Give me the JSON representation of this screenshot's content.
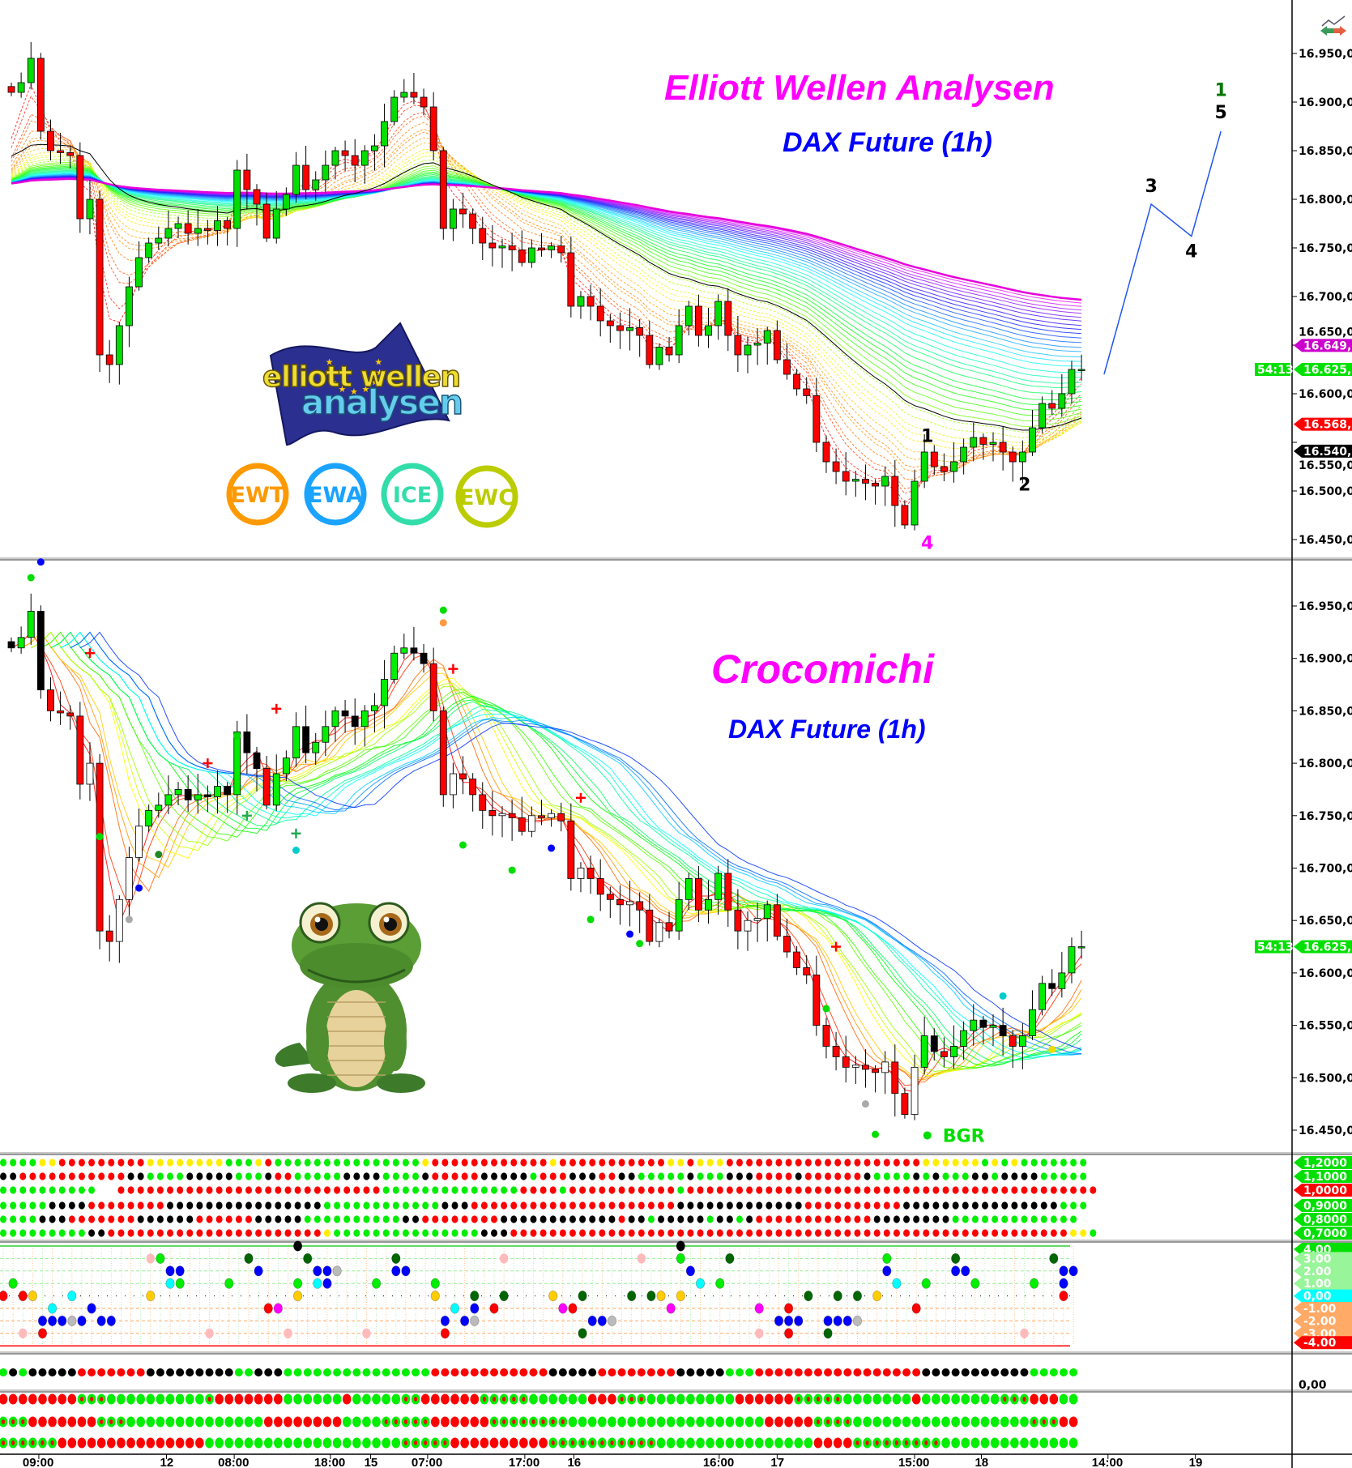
{
  "titles": {
    "elliott_title": "Elliott Wellen Analysen",
    "elliott_subtitle": "DAX Future (1h)",
    "croco_title": "Crocomichi",
    "croco_subtitle": "DAX Future (1h)"
  },
  "logo": {
    "text_line1": "elliott wellen",
    "text_line2": "analysen",
    "flag_color": "#2b2f8f"
  },
  "badges": [
    {
      "label": "EWT",
      "color": "#ff9900"
    },
    {
      "label": "EWA",
      "color": "#1aa3ff"
    },
    {
      "label": "ICE",
      "color": "#33ddaa"
    },
    {
      "label": "EWC",
      "color": "#bbcc00"
    }
  ],
  "top_right_icon": "chart-arrows-icon",
  "chart_data": {
    "type": "candlestick",
    "instrument": "DAX Future (1h)",
    "close": [
      16910,
      16920,
      16945,
      16870,
      16850,
      16848,
      16845,
      16780,
      16800,
      16640,
      16630,
      16670,
      16710,
      16740,
      16755,
      16760,
      16770,
      16775,
      16765,
      16770,
      16768,
      16778,
      16770,
      16830,
      16810,
      16795,
      16760,
      16790,
      16805,
      16835,
      16810,
      16820,
      16835,
      16850,
      16845,
      16835,
      16850,
      16855,
      16880,
      16905,
      16910,
      16905,
      16895,
      16850,
      16770,
      16790,
      16785,
      16770,
      16755,
      16750,
      16752,
      16748,
      16735,
      16750,
      16748,
      16752,
      16745,
      16690,
      16700,
      16690,
      16675,
      16670,
      16665,
      16668,
      16660,
      16630,
      16648,
      16640,
      16670,
      16690,
      16660,
      16670,
      16695,
      16660,
      16640,
      16650,
      16652,
      16665,
      16635,
      16620,
      16605,
      16598,
      16550,
      16530,
      16520,
      16510,
      16512,
      16508,
      16505,
      16515,
      16485,
      16465,
      16510,
      16540,
      16525,
      16520,
      16530,
      16545,
      16555,
      16548,
      16550,
      16540,
      16530,
      16540,
      16565,
      16590,
      16585,
      16600,
      16625,
      16625
    ],
    "price_axis": {
      "ylim": [
        16450,
        16950
      ],
      "ticks": [
        "16.950,0",
        "16.900,0",
        "16.850,0",
        "16.800,0",
        "16.750,0",
        "16.700,0",
        "16.650,0",
        "16.600,0",
        "16.550,0",
        "16.500,0",
        "16.450,0"
      ],
      "tick_values": [
        16950,
        16900,
        16850,
        16800,
        16750,
        16700,
        16650,
        16600,
        16550,
        16500,
        16450
      ]
    },
    "time_axis": [
      {
        "label": "09:00",
        "bar": 2.8
      },
      {
        "label": "12",
        "bar": 15.8
      },
      {
        "label": "08:00",
        "bar": 22.7
      },
      {
        "label": "18:00",
        "bar": 32.5
      },
      {
        "label": "15",
        "bar": 36.6
      },
      {
        "label": "07:00",
        "bar": 42.4
      },
      {
        "label": "17:00",
        "bar": 52.3
      },
      {
        "label": "16",
        "bar": 57.3
      },
      {
        "label": "16:00",
        "bar": 72.1
      },
      {
        "label": "17",
        "bar": 78
      },
      {
        "label": "15:00",
        "bar": 92
      },
      {
        "label": "18",
        "bar": 98.8
      },
      {
        "label": "14:00",
        "bar": 111.7
      },
      {
        "label": "19",
        "bar": 120.6
      }
    ],
    "panel1_tags": [
      {
        "text": "16.649,7",
        "price": 16649.7,
        "color": "#cc00cc"
      },
      {
        "text": "16.625,0",
        "price": 16625,
        "color": "#00e000",
        "sub": "54:13"
      },
      {
        "text": "16.568,6",
        "price": 16568.6,
        "color": "#ff0000"
      },
      {
        "text": "16.540,9",
        "price": 16540.9,
        "color": "#000000"
      }
    ],
    "panel2_tags": [
      {
        "text": "16.625,0",
        "price": 16625,
        "color": "#00e000",
        "sub": "54:13"
      }
    ],
    "wave_labels": [
      {
        "text": "4",
        "bar": 93.3,
        "price": 16447,
        "color": "#ff00ff"
      },
      {
        "text": "1",
        "bar": 93.3,
        "price": 16557,
        "color": "#000000"
      },
      {
        "text": "2",
        "bar": 103.2,
        "price": 16507,
        "color": "#000000"
      },
      {
        "text": "3",
        "bar": 116.1,
        "price": 16814,
        "color": "#000000"
      },
      {
        "text": "4",
        "bar": 120.2,
        "price": 16747,
        "color": "#000000"
      },
      {
        "text": "1",
        "bar": 123.2,
        "price": 16913,
        "color": "#007700"
      },
      {
        "text": "5",
        "bar": 123.2,
        "price": 16890,
        "color": "#000000"
      }
    ],
    "wave_projection": [
      [
        111.3,
        16620
      ],
      [
        116.1,
        16795
      ],
      [
        120.2,
        16762
      ],
      [
        123.2,
        16870
      ]
    ],
    "croco_signals": [
      [
        2,
        16977,
        "dot",
        "#00dd00"
      ],
      [
        3,
        16992,
        "dot",
        "#0000ff"
      ],
      [
        8,
        16905,
        "cross",
        "#ff0000"
      ],
      [
        9,
        16730,
        "dot",
        "#00dd00"
      ],
      [
        13,
        16681,
        "dot",
        "#0000ff"
      ],
      [
        12,
        16651,
        "dot",
        "#aaaaaa"
      ],
      [
        15,
        16713,
        "dot",
        "#228822"
      ],
      [
        20,
        16800,
        "cross",
        "#ff0000"
      ],
      [
        23,
        16826,
        "dot",
        "#00dd00"
      ],
      [
        24,
        16750,
        "cross",
        "#22aa55"
      ],
      [
        27,
        16852,
        "cross",
        "#ff0000"
      ],
      [
        29,
        16733,
        "cross",
        "#22aa55"
      ],
      [
        29,
        16717,
        "dot",
        "#00cccc"
      ],
      [
        44,
        16946,
        "dot",
        "#00dd00"
      ],
      [
        44,
        16934,
        "dot",
        "#ff9944"
      ],
      [
        45,
        16890,
        "cross",
        "#ff0000"
      ],
      [
        46,
        16722,
        "dot",
        "#00dd00"
      ],
      [
        51,
        16698,
        "dot",
        "#00dd00"
      ],
      [
        55,
        16719,
        "dot",
        "#0000ff"
      ],
      [
        58,
        16767,
        "cross",
        "#ff0000"
      ],
      [
        59,
        16651,
        "dot",
        "#00dd00"
      ],
      [
        63,
        16637,
        "dot",
        "#0000ff"
      ],
      [
        64,
        16628,
        "dot",
        "#00dd00"
      ],
      [
        84,
        16625,
        "cross",
        "#ff0000"
      ],
      [
        83,
        16566,
        "dot",
        "#00dd00"
      ],
      [
        87,
        16475,
        "dot",
        "#aaaaaa"
      ],
      [
        88,
        16446,
        "dot",
        "#00dd00"
      ],
      [
        106,
        16527,
        "dot",
        "#eedd00"
      ],
      [
        101,
        16578,
        "dot",
        "#00cccc"
      ]
    ],
    "croco_label": {
      "text": "BGR",
      "bar": 93.3,
      "price": 16445,
      "color": "#00dd00"
    },
    "dot_panel": {
      "levels": [
        "1,2000",
        "1,1000",
        "1,0000",
        "0,9000",
        "0,8000",
        "0,7000"
      ],
      "level_colors": [
        "#00e000",
        "#00e000",
        "#ff0000",
        "#00e000",
        "#00e000",
        "#00e000"
      ],
      "rows": [
        "ggggyyrrrrrrrrryyyyyyyygggyrgggggggggggggggyrrrrrrrrrrrryrrrrrrrrrrryyryyyrrrrrrrrrrrrrrrrrrrryyyyyygygyggggggg",
        "kkrrrrrrrrrrrkkggggkkkkkgggkrrgggggkkkkggggkrrrrrkkkkkgrrrkkkrrkkgggggkgggkkkrrrrkrrrrrrkggggkgkgggkkgkkkkggggg",
        "gggggggggg  rrrrrrrrrrrrrrrrrrrrrrrrrrrggggggggggggggrrrrgrrrrrrrrrrrgrrrrrrrrrrrrrrrrrrrrrrrrrrrrrrrrrrrrrrrrrrrr",
        "gggggkkkkrrrrrrrrkkkkkkkkkkkkkkkkggggggggggggkkkrrrrrrrrrrrrrrrrrrrrrkkkkkkkkkkkkkrrrrrrrrrrkkkkkkkkkkkkkkkkggg",
        "ggggkkkrrrrrrrkkkkkkrrrrrrkkkkkggggggggggkkrrrrrrrrkkkkkkkkkkkkrkkgkkkkkgkkgkrrrrrrrrrrrrkkkkkkkkggggggggggggg",
        "gggggggggkkrrrrrrrrrrrrrrrrrrrrrrygggggggggggggggkkkrrrrrrrrrrrrrrrrrrrrrrrrrrrrrrrrrrrrrrrrrrrrrrrrrrrrrrrrryyg"
      ],
      "colors": {
        "g": "#00ee00",
        "r": "#ff0000",
        "k": "#000000",
        "y": "#ffee00"
      }
    },
    "level_panel": {
      "levels": [
        "4.00",
        "3.00",
        "2.00",
        "1.00",
        "0,00",
        "-1.00",
        "-2.00",
        "-3.00",
        "-4.00"
      ],
      "level_colors": [
        "#00e000",
        "#99f599",
        "#99f599",
        "#99f599",
        "#00ffff",
        "#ffaa66",
        "#ffaa66",
        "#ffaa66",
        "#ff0000"
      ],
      "points": [
        [
          15,
          3,
          "#ffbbbb"
        ],
        [
          16,
          3,
          "#00ee00"
        ],
        [
          25,
          3,
          "#006600"
        ],
        [
          31,
          3,
          "#006600"
        ],
        [
          40,
          3,
          "#006600"
        ],
        [
          51,
          3,
          "#ffbbbb"
        ],
        [
          65,
          3,
          "#ffbbbb"
        ],
        [
          69,
          3,
          "#00ee00"
        ],
        [
          74,
          3,
          "#006600"
        ],
        [
          90,
          3,
          "#00ee00"
        ],
        [
          97,
          3,
          "#006600"
        ],
        [
          107,
          3,
          "#006600"
        ],
        [
          17,
          2,
          "#0000ff"
        ],
        [
          18,
          2,
          "#0000ff"
        ],
        [
          26,
          2,
          "#0000ff"
        ],
        [
          32,
          2,
          "#0000ff"
        ],
        [
          33,
          2,
          "#0000ff"
        ],
        [
          34,
          2,
          "#bbbbbb"
        ],
        [
          40,
          2,
          "#0000ff"
        ],
        [
          41,
          2,
          "#0000ff"
        ],
        [
          70,
          2,
          "#0000ff"
        ],
        [
          90,
          2,
          "#0000ff"
        ],
        [
          97,
          2,
          "#0000ff"
        ],
        [
          98,
          2,
          "#0000ff"
        ],
        [
          108,
          2,
          "#0000ff"
        ],
        [
          109,
          2,
          "#0000ff"
        ],
        [
          1,
          1,
          "#00ee00"
        ],
        [
          17,
          1,
          "#00ffff"
        ],
        [
          18,
          1,
          "#00ee00"
        ],
        [
          23,
          1,
          "#00ee00"
        ],
        [
          30,
          1,
          "#00ee00"
        ],
        [
          32,
          1,
          "#00ffff"
        ],
        [
          33,
          1,
          "#0000ff"
        ],
        [
          38,
          1,
          "#00ee00"
        ],
        [
          44,
          1,
          "#00ee00"
        ],
        [
          71,
          1,
          "#00ffff"
        ],
        [
          73,
          1,
          "#00ee00"
        ],
        [
          91,
          1,
          "#00ffff"
        ],
        [
          94,
          1,
          "#00ee00"
        ],
        [
          99,
          1,
          "#00ee00"
        ],
        [
          105,
          1,
          "#00ee00"
        ],
        [
          108,
          1,
          "#0000ff"
        ],
        [
          0,
          0,
          "#ff0000"
        ],
        [
          2,
          0,
          "#ff0000"
        ],
        [
          3,
          0,
          "#ffcc00"
        ],
        [
          7,
          0,
          "#00ffff"
        ],
        [
          15,
          0,
          "#ffcc00"
        ],
        [
          30,
          0,
          "#ffcc00"
        ],
        [
          44,
          0,
          "#ffcc00"
        ],
        [
          48,
          0,
          "#006600"
        ],
        [
          51,
          0,
          "#006600"
        ],
        [
          56,
          0,
          "#ffcc00"
        ],
        [
          59,
          0,
          "#006600"
        ],
        [
          64,
          0,
          "#006600"
        ],
        [
          66,
          0,
          "#006600"
        ],
        [
          67,
          0,
          "#ffcc00"
        ],
        [
          69,
          0,
          "#ffcc00"
        ],
        [
          82,
          0,
          "#006600"
        ],
        [
          85,
          0,
          "#006600"
        ],
        [
          87,
          0,
          "#006600"
        ],
        [
          89,
          0,
          "#ffcc00"
        ],
        [
          108,
          0,
          "#ff0000"
        ],
        [
          5,
          -1,
          "#00ffff"
        ],
        [
          9,
          -1,
          "#0000ff"
        ],
        [
          27,
          -1,
          "#ff0000"
        ],
        [
          28,
          -1,
          "#ff00ff"
        ],
        [
          46,
          -1,
          "#00ffff"
        ],
        [
          48,
          -1,
          "#0000ff"
        ],
        [
          50,
          -1,
          "#ff0000"
        ],
        [
          57,
          -1,
          "#ff00ff"
        ],
        [
          58,
          -1,
          "#ff0000"
        ],
        [
          68,
          -1,
          "#ff00ff"
        ],
        [
          77,
          -1,
          "#ff00ff"
        ],
        [
          80,
          -1,
          "#ff0000"
        ],
        [
          93,
          -1,
          "#ff0000"
        ],
        [
          4,
          -2,
          "#0000ff"
        ],
        [
          5,
          -2,
          "#0000ff"
        ],
        [
          6,
          -2,
          "#0000ff"
        ],
        [
          7,
          -2,
          "#bbbbbb"
        ],
        [
          8,
          -2,
          "#0000ff"
        ],
        [
          10,
          -2,
          "#0000ff"
        ],
        [
          11,
          -2,
          "#0000ff"
        ],
        [
          45,
          -2,
          "#0000ff"
        ],
        [
          47,
          -2,
          "#0000ff"
        ],
        [
          48,
          -2,
          "#bbbbbb"
        ],
        [
          60,
          -2,
          "#0000ff"
        ],
        [
          61,
          -2,
          "#0000ff"
        ],
        [
          62,
          -2,
          "#bbbbbb"
        ],
        [
          79,
          -2,
          "#0000ff"
        ],
        [
          80,
          -2,
          "#0000ff"
        ],
        [
          81,
          -2,
          "#0000ff"
        ],
        [
          84,
          -2,
          "#0000ff"
        ],
        [
          85,
          -2,
          "#0000ff"
        ],
        [
          86,
          -2,
          "#0000ff"
        ],
        [
          87,
          -2,
          "#bbbbbb"
        ],
        [
          2,
          -3,
          "#ffbbbb"
        ],
        [
          4,
          -3,
          "#ff0000"
        ],
        [
          21,
          -3,
          "#ffbbbb"
        ],
        [
          29,
          -3,
          "#ffbbbb"
        ],
        [
          37,
          -3,
          "#ffbbbb"
        ],
        [
          45,
          -3,
          "#ff0000"
        ],
        [
          59,
          -3,
          "#006600"
        ],
        [
          77,
          -3,
          "#ffbbbb"
        ],
        [
          80,
          -3,
          "#ff0000"
        ],
        [
          84,
          -3,
          "#006600"
        ],
        [
          104,
          -3,
          "#ffbbbb"
        ],
        [
          30,
          4,
          "#000000"
        ],
        [
          69,
          4,
          "#000000"
        ]
      ]
    },
    "single_row_panel": {
      "level": "0,00",
      "row": "gkgkkkkkrrrrrrrkkkkkkkkkggkkkgggggggggggggggrrrrrrrrrrrrkkkkkrrrrrrrrkkkkkgggrrrrrrrrrrrrrrrrrkkkkkkkkkkkggggg"
    },
    "triple_row_panel": {
      "rows": [
        "rrrrrrrrmmmggggggggggmrrrrrrrggggggrgggggmmrrrrrrmmmmmggggggrrrmmmgggggggggrrrrrrmmmmmgggggggrggggggggmmmrrrggr",
        "mmmrrrrrrrmmmggggggggggggggrrrrrrrrggggmmmmmrrrrrrmmmmmmmmggggggggggggggggggggrrrrrmmmmggggggggggggggggggmmmrrr",
        "mmmmmmrrrrrrrrrrrrrrrggggggggggggggggggggmmmmmrrrrrrrrrrmmmmmmmmmmmggggggggggggggggrrrrmmmmmmmmmggggggggggggggg"
      ],
      "colors": {
        "g": "#00ee00",
        "r": "#ff0000",
        "m": "#00ee00"
      }
    }
  }
}
